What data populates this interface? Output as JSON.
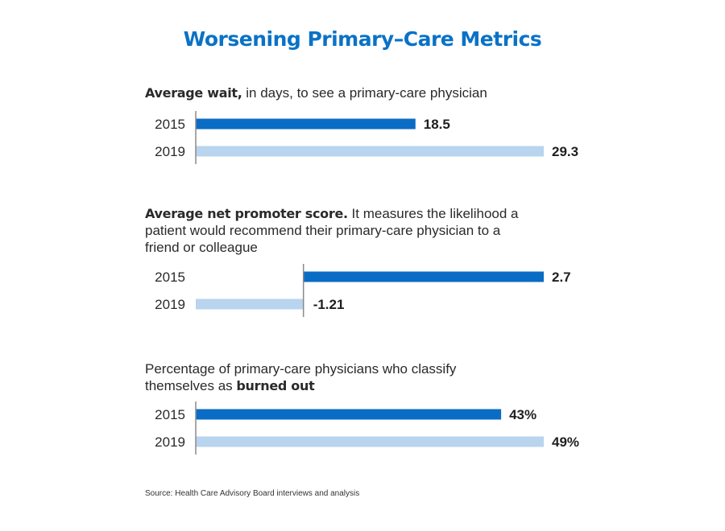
{
  "title": "Worsening Primary–Care Metrics",
  "colors": {
    "title": "#0a72c6",
    "bar_2015": "#0a6cc4",
    "bar_2019": "#b8d4ee",
    "axis": "#8a8a8a"
  },
  "chart_data": [
    {
      "type": "bar",
      "orientation": "horizontal",
      "title_bold": "Average wait,",
      "title_rest": " in days, to see a primary-care physician",
      "categories": [
        "2015",
        "2019"
      ],
      "values": [
        18.5,
        29.3
      ],
      "value_labels": [
        "18.5",
        "29.3"
      ],
      "xlim": [
        0,
        29.3
      ]
    },
    {
      "type": "bar",
      "orientation": "horizontal",
      "title_bold": "Average net promoter score.",
      "title_rest": " It measures the likelihood a patient would recommend their primary-care physician to a friend or colleague",
      "categories": [
        "2015",
        "2019"
      ],
      "values": [
        2.7,
        -1.21
      ],
      "value_labels": [
        "2.7",
        "-1.21"
      ],
      "xlim": [
        -1.21,
        2.7
      ]
    },
    {
      "type": "bar",
      "orientation": "horizontal",
      "title_plain": "Percentage of primary-care physicians who classify themselves as ",
      "title_bold": "burned out",
      "categories": [
        "2015",
        "2019"
      ],
      "values": [
        43,
        49
      ],
      "value_labels": [
        "43%",
        "49%"
      ],
      "xlim": [
        0,
        49
      ]
    }
  ],
  "source": "Source: Health Care Advisory Board interviews and analysis"
}
